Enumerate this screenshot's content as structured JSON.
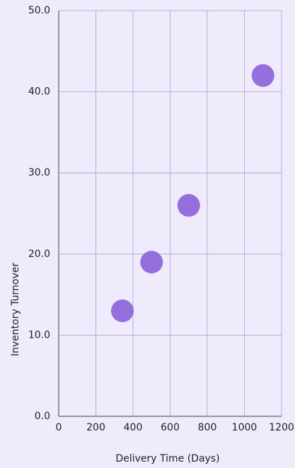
{
  "chart_data": {
    "type": "scatter",
    "x_label": "Delivery Time (Days)",
    "y_label": "Inventory Turnover",
    "x": [
      343,
      500,
      700,
      1100
    ],
    "series": [
      {
        "name": null,
        "color": "#9370db",
        "values": [
          13,
          19,
          26,
          42
        ]
      }
    ],
    "xlim": [
      0,
      1200
    ],
    "xticks": [
      0,
      200,
      400,
      600,
      800,
      1000,
      1200
    ],
    "ylim": [
      0,
      50
    ],
    "yticks": [
      {
        "value": 0,
        "label": "0.0"
      },
      {
        "value": 10,
        "label": "10.0"
      },
      {
        "value": 20,
        "label": "20.0"
      },
      {
        "value": 30,
        "label": "30.0"
      },
      {
        "value": 40,
        "label": "40.0"
      },
      {
        "value": 50,
        "label": "50.0"
      }
    ],
    "grid": true
  }
}
